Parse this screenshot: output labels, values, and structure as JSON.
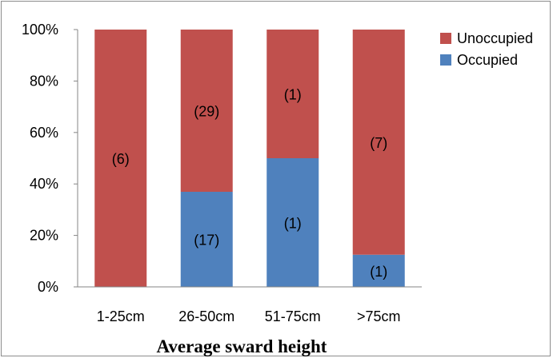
{
  "chart_data": {
    "type": "bar",
    "stacked": true,
    "percent_stacked": true,
    "categories": [
      "1-25cm",
      "26-50cm",
      "51-75cm",
      ">75cm"
    ],
    "series": [
      {
        "name": "Occupied",
        "color": "#4F81BD",
        "values": [
          0,
          17,
          1,
          1
        ],
        "labels": [
          "",
          "(17)",
          "(1)",
          "(1)"
        ]
      },
      {
        "name": "Unoccupied",
        "color": "#C0504D",
        "values": [
          6,
          29,
          1,
          7
        ],
        "labels": [
          "(6)",
          "(29)",
          "(1)",
          "(7)"
        ]
      }
    ],
    "xlabel": "Average sward height",
    "ylabel": "",
    "ylim": [
      0,
      100
    ],
    "yticks": [
      "0%",
      "20%",
      "40%",
      "60%",
      "80%",
      "100%"
    ],
    "legend": {
      "placement": "right",
      "order": [
        "Unoccupied",
        "Occupied"
      ]
    },
    "grid": false
  }
}
